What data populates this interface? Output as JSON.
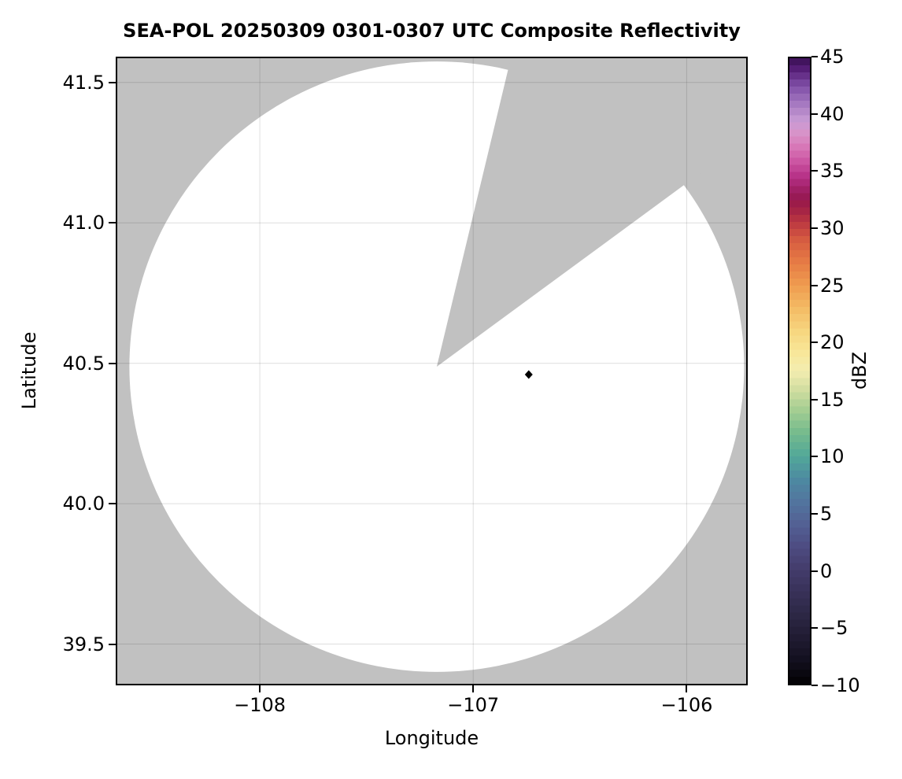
{
  "figure": {
    "title": "SEA-POL 20250309 0301-0307 UTC Composite Reflectivity"
  },
  "chart_data": {
    "type": "heatmap",
    "subtype": "radar-composite-reflectivity-map",
    "title": "SEA-POL 20250309 0301-0307 UTC Composite Reflectivity",
    "xlabel": "Longitude",
    "ylabel": "Latitude",
    "xlim": [
      -108.675,
      -105.714
    ],
    "ylim": [
      39.353,
      41.592
    ],
    "grid": true,
    "grid_color": "rgba(0,0,0,0.13)",
    "xticks": [
      {
        "value": -108,
        "label": "−108"
      },
      {
        "value": -107,
        "label": "−107"
      },
      {
        "value": -106,
        "label": "−106"
      }
    ],
    "yticks": [
      {
        "value": 41.5,
        "label": "41.5"
      },
      {
        "value": 41.0,
        "label": "41.0"
      },
      {
        "value": 40.5,
        "label": "40.5"
      },
      {
        "value": 40.0,
        "label": "40.0"
      },
      {
        "value": 39.5,
        "label": "39.5"
      }
    ],
    "colors": {
      "outside_scan_gray": "#c1c1c1",
      "scan_area_white": "#ffffff",
      "axes_border": "#000000"
    },
    "radar_coverage": {
      "center_lon": -107.171,
      "center_lat": 40.488,
      "radius_lon_deg": 1.44,
      "radius_lat_deg": 1.087,
      "blocked_sector_azimuth_deg": [
        13.5,
        53.7
      ]
    },
    "echo_points": [
      {
        "lon": -106.74,
        "lat": 40.46,
        "approx_value_dbz": -10,
        "marker": "diamond",
        "color": "#000000"
      }
    ],
    "colorbar": {
      "label": "dBZ",
      "min": -10,
      "max": 45,
      "band_step_dbz": 0.625,
      "ticks": [
        {
          "value": 45,
          "label": "45"
        },
        {
          "value": 40,
          "label": "40"
        },
        {
          "value": 35,
          "label": "35"
        },
        {
          "value": 30,
          "label": "30"
        },
        {
          "value": 25,
          "label": "25"
        },
        {
          "value": 20,
          "label": "20"
        },
        {
          "value": 15,
          "label": "15"
        },
        {
          "value": 10,
          "label": "10"
        },
        {
          "value": 5,
          "label": "5"
        },
        {
          "value": 0,
          "label": "0"
        },
        {
          "value": -5,
          "label": "−5"
        },
        {
          "value": -10,
          "label": "−10"
        }
      ],
      "stops": [
        {
          "v": -10,
          "c": "#020103"
        },
        {
          "v": -8,
          "c": "#120f1e"
        },
        {
          "v": -6,
          "c": "#201b31"
        },
        {
          "v": -4,
          "c": "#2c2745"
        },
        {
          "v": -2,
          "c": "#383158"
        },
        {
          "v": 0,
          "c": "#433c6b"
        },
        {
          "v": 2,
          "c": "#4d4b81"
        },
        {
          "v": 4,
          "c": "#536094"
        },
        {
          "v": 6,
          "c": "#52759e"
        },
        {
          "v": 8,
          "c": "#4d8aa1"
        },
        {
          "v": 10,
          "c": "#52a899"
        },
        {
          "v": 12,
          "c": "#74ba8d"
        },
        {
          "v": 14,
          "c": "#a3cd92"
        },
        {
          "v": 16,
          "c": "#d5dfa1"
        },
        {
          "v": 17.5,
          "c": "#f3edb0"
        },
        {
          "v": 19,
          "c": "#f8e89b"
        },
        {
          "v": 21,
          "c": "#f7d67f"
        },
        {
          "v": 23,
          "c": "#f4bb65"
        },
        {
          "v": 25,
          "c": "#ef9c50"
        },
        {
          "v": 27,
          "c": "#e67c45"
        },
        {
          "v": 29,
          "c": "#d65c41"
        },
        {
          "v": 30.5,
          "c": "#bd3a41"
        },
        {
          "v": 32,
          "c": "#9d1c46"
        },
        {
          "v": 33,
          "c": "#971a58"
        },
        {
          "v": 34.5,
          "c": "#b52f85"
        },
        {
          "v": 36,
          "c": "#cd58a4"
        },
        {
          "v": 37.5,
          "c": "#d97fbc"
        },
        {
          "v": 38.5,
          "c": "#d794ca"
        },
        {
          "v": 39.5,
          "c": "#c99bd4"
        },
        {
          "v": 41,
          "c": "#a478c0"
        },
        {
          "v": 42.5,
          "c": "#8150a8"
        },
        {
          "v": 44,
          "c": "#571f78"
        },
        {
          "v": 45,
          "c": "#380f52"
        }
      ]
    }
  }
}
